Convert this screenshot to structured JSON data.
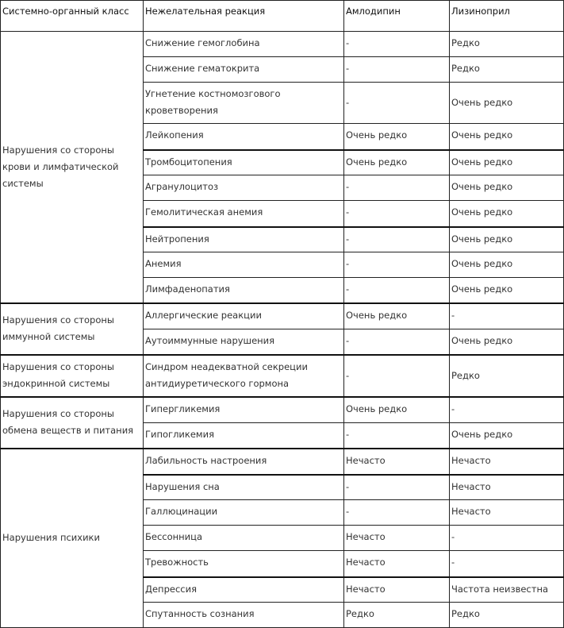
{
  "table": {
    "headers": [
      "Системно-органный класс",
      "Нежелательная реакция",
      "Амлодипин",
      "Лизиноприл"
    ],
    "groups": [
      {
        "class": "Нарушения со стороны крови и лимфатической системы",
        "rows": [
          {
            "reaction": "Снижение гемоглобина",
            "amlodipine": "-",
            "lisinopril": "Редко"
          },
          {
            "reaction": "Снижение гематокрита",
            "amlodipine": "-",
            "lisinopril": "Редко"
          },
          {
            "reaction": "Угнетение костномозгового кроветворения",
            "amlodipine": "-",
            "lisinopril": "Очень редко"
          },
          {
            "reaction": "Лейкопения",
            "amlodipine": "Очень редко",
            "lisinopril": "Очень редко"
          },
          {
            "reaction": "Тромбоцитопения",
            "amlodipine": "Очень редко",
            "lisinopril": "Очень редко"
          },
          {
            "reaction": "Агранулоцитоз",
            "amlodipine": "-",
            "lisinopril": "Очень редко"
          },
          {
            "reaction": "Гемолитическая анемия",
            "amlodipine": "-",
            "lisinopril": "Очень редко"
          },
          {
            "reaction": "Нейтропения",
            "amlodipine": "-",
            "lisinopril": "Очень редко"
          },
          {
            "reaction": "Анемия",
            "amlodipine": "-",
            "lisinopril": "Очень редко"
          },
          {
            "reaction": "Лимфаденопатия",
            "amlodipine": "-",
            "lisinopril": "Очень редко"
          }
        ]
      },
      {
        "class": "Нарушения со стороны иммунной системы",
        "rows": [
          {
            "reaction": "Аллергические реакции",
            "amlodipine": "Очень редко",
            "lisinopril": "-"
          },
          {
            "reaction": "Аутоиммунные нарушения",
            "amlodipine": "-",
            "lisinopril": "Очень редко"
          }
        ]
      },
      {
        "class": "Нарушения со стороны эндокринной системы",
        "rows": [
          {
            "reaction": "Синдром неадекватной секреции антидиуретического гормона",
            "amlodipine": "-",
            "lisinopril": "Редко"
          }
        ]
      },
      {
        "class": "Нарушения со стороны обмена веществ и питания",
        "rows": [
          {
            "reaction": "Гипергликемия",
            "amlodipine": "Очень редко",
            "lisinopril": "-"
          },
          {
            "reaction": "Гипогликемия",
            "amlodipine": "-",
            "lisinopril": "Очень редко"
          }
        ]
      },
      {
        "class": "Нарушения психики",
        "rows": [
          {
            "reaction": "Лабильность настроения",
            "amlodipine": "Нечасто",
            "lisinopril": "Нечасто"
          },
          {
            "reaction": "Нарушения сна",
            "amlodipine": "-",
            "lisinopril": "Нечасто"
          },
          {
            "reaction": "Галлюцинации",
            "amlodipine": "-",
            "lisinopril": "Нечасто"
          },
          {
            "reaction": "Бессонница",
            "amlodipine": "Нечасто",
            "lisinopril": "-"
          },
          {
            "reaction": "Тревожность",
            "amlodipine": "Нечасто",
            "lisinopril": "-"
          },
          {
            "reaction": "Депрессия",
            "amlodipine": "Нечасто",
            "lisinopril": "Частота неизвестна"
          },
          {
            "reaction": "Спутанность сознания",
            "amlodipine": "Редко",
            "lisinopril": "Редко"
          }
        ]
      }
    ]
  }
}
